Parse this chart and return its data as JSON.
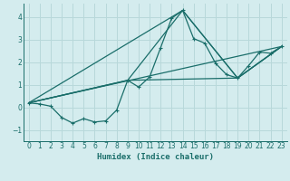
{
  "xlabel": "Humidex (Indice chaleur)",
  "bg_color": "#d4ecee",
  "grid_color": "#b8d8da",
  "line_color": "#1a6e6a",
  "xlim": [
    -0.5,
    23.5
  ],
  "ylim": [
    -1.5,
    4.6
  ],
  "xticks": [
    0,
    1,
    2,
    3,
    4,
    5,
    6,
    7,
    8,
    9,
    10,
    11,
    12,
    13,
    14,
    15,
    16,
    17,
    18,
    19,
    20,
    21,
    22,
    23
  ],
  "yticks": [
    -1,
    0,
    1,
    2,
    3,
    4
  ],
  "line1_x": [
    0,
    1,
    2,
    3,
    4,
    5,
    6,
    7,
    8,
    9,
    10,
    11,
    12,
    13,
    14,
    15,
    16,
    17,
    18,
    19,
    20,
    21,
    22,
    23
  ],
  "line1_y": [
    0.2,
    0.15,
    0.05,
    -0.45,
    -0.7,
    -0.5,
    -0.65,
    -0.6,
    -0.12,
    1.2,
    0.9,
    1.35,
    2.65,
    3.95,
    4.3,
    3.05,
    2.85,
    1.95,
    1.45,
    1.3,
    1.85,
    2.45,
    2.4,
    2.7
  ],
  "line2_x": [
    0,
    23
  ],
  "line2_y": [
    0.2,
    2.7
  ],
  "line3_x": [
    0,
    14,
    19,
    23
  ],
  "line3_y": [
    0.2,
    4.3,
    1.3,
    2.7
  ],
  "line4_x": [
    0,
    9,
    14,
    19,
    23
  ],
  "line4_y": [
    0.2,
    1.2,
    4.3,
    1.3,
    2.7
  ],
  "line5_x": [
    0,
    9,
    19,
    23
  ],
  "line5_y": [
    0.2,
    1.2,
    1.3,
    2.7
  ]
}
